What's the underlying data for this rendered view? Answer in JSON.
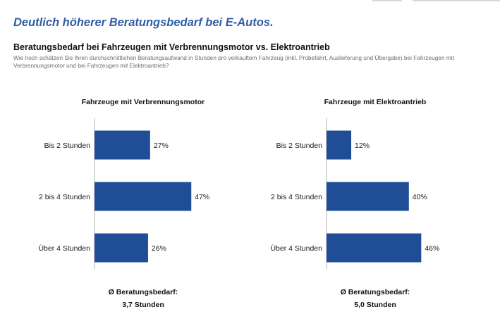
{
  "header": {
    "title": "Deutlich höherer Beratungsbedarf bei E-Autos.",
    "subtitle": "Beratungsbedarf bei Fahrzeugen mit Verbrennungsmotor vs. Elektroantrieb",
    "question": "Wie hoch schätzen Sie Ihren durchschnittlichen Beratungsaufwand in Stunden pro verkauftem Fahrzeug (inkl. Probefahrt, Auslieferung und Übergabe) bei Fahrzeugen mit Verbrennungsmotor und bei Fahrzeugen mit Elektroantrieb?"
  },
  "colors": {
    "bar": "#1f4e96",
    "axis": "#b3b3b3",
    "title": "#2f5ea6"
  },
  "chart_data": [
    {
      "type": "bar",
      "orientation": "horizontal",
      "title": "Fahrzeuge mit Verbrennungsmotor",
      "categories": [
        "Bis 2 Stunden",
        "2 bis 4 Stunden",
        "Über 4 Stunden"
      ],
      "values": [
        27,
        47,
        26
      ],
      "value_labels": [
        "27%",
        "47%",
        "26%"
      ],
      "xlim": [
        0,
        50
      ],
      "avg_label": "Ø Beratungsbedarf:",
      "avg_value": "3,7 Stunden"
    },
    {
      "type": "bar",
      "orientation": "horizontal",
      "title": "Fahrzeuge mit Elektroantrieb",
      "categories": [
        "Bis 2 Stunden",
        "2 bis 4 Stunden",
        "Über 4 Stunden"
      ],
      "values": [
        12,
        40,
        46
      ],
      "value_labels": [
        "12%",
        "40%",
        "46%"
      ],
      "xlim": [
        0,
        50
      ],
      "avg_label": "Ø Beratungsbedarf:",
      "avg_value": "5,0 Stunden"
    }
  ]
}
